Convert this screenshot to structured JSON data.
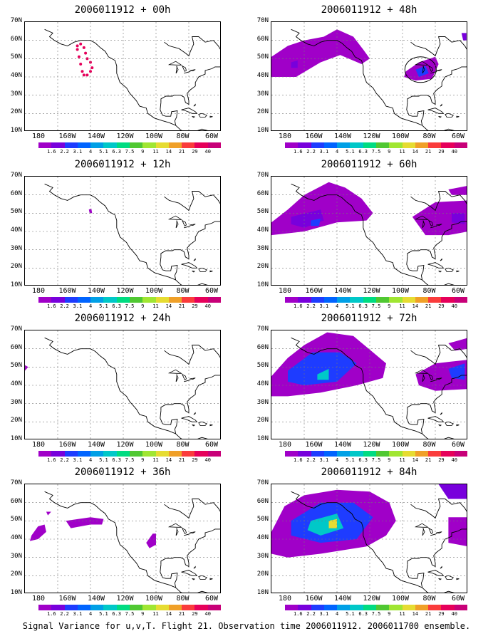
{
  "caption": "Signal Variance for u,v,T. Flight 21. Observation time 2006011912. 2006011700 ensemble.",
  "latitude_labels": [
    "70N",
    "60N",
    "50N",
    "40N",
    "30N",
    "20N",
    "10N"
  ],
  "longitude_labels": [
    "180",
    "160W",
    "140W",
    "120W",
    "100W",
    "80W",
    "60W"
  ],
  "colorbar": {
    "labels": [
      "1.6",
      "2.2",
      "3.1",
      "4",
      "5.1",
      "6.3",
      "7.5",
      "9",
      "11",
      "14",
      "21",
      "29",
      "40"
    ],
    "colors": [
      "#a000c8",
      "#7800dc",
      "#1e3cff",
      "#0064ff",
      "#00a0e6",
      "#00c8c8",
      "#00dc82",
      "#50c832",
      "#a0e632",
      "#e6dc32",
      "#f0a028",
      "#fa3c3c",
      "#e6005a",
      "#c80078"
    ]
  },
  "panels": [
    {
      "title": "2006011912 + 00h",
      "feature": "flight-track"
    },
    {
      "title": "2006011912 + 48h",
      "feature": "signal-48h"
    },
    {
      "title": "2006011912 + 12h",
      "feature": "signal-12h"
    },
    {
      "title": "2006011912 + 60h",
      "feature": "signal-60h"
    },
    {
      "title": "2006011912 + 24h",
      "feature": "signal-24h"
    },
    {
      "title": "2006011912 + 72h",
      "feature": "signal-72h"
    },
    {
      "title": "2006011912 + 36h",
      "feature": "signal-36h"
    },
    {
      "title": "2006011912 + 84h",
      "feature": "signal-84h"
    }
  ]
}
